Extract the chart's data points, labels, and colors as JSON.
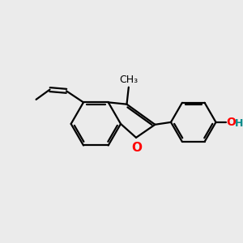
{
  "bg_color": "#ebebeb",
  "bond_color": "#000000",
  "o_color": "#ff0000",
  "oh_o_color": "#ff0000",
  "oh_h_color": "#008b8b",
  "line_width": 1.6,
  "font_size_o": 11,
  "font_size_oh": 10,
  "font_size_me": 9,
  "figsize": [
    3.0,
    3.0
  ],
  "dpi": 100,
  "xlim": [
    0,
    10
  ],
  "ylim": [
    0,
    10
  ]
}
